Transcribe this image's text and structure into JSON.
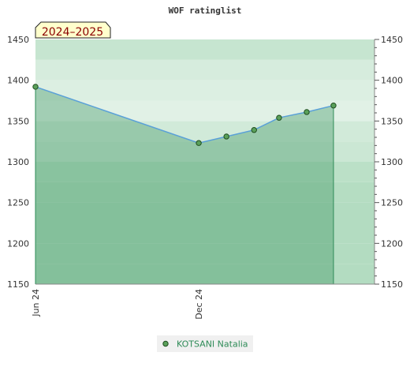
{
  "chart_data": {
    "type": "area",
    "title": "WOF ratinglist",
    "season_label": "2024–2025",
    "xlabel": "",
    "ylabel": "",
    "ylim": [
      1150,
      1450
    ],
    "yticks": [
      1150,
      1200,
      1250,
      1300,
      1350,
      1400,
      1450
    ],
    "xlim": [
      "2024-06-01",
      "2025-06-16"
    ],
    "xticks": [
      {
        "label": "Jun 24",
        "date": "2024-06-01"
      },
      {
        "label": "Dec 24",
        "date": "2024-12-01"
      }
    ],
    "series": [
      {
        "name": "KOTSANI Natalia",
        "points": [
          {
            "date": "2024-06-01",
            "value": 1392
          },
          {
            "date": "2024-12-01",
            "value": 1323
          },
          {
            "date": "2025-01-01",
            "value": 1331
          },
          {
            "date": "2025-02-01",
            "value": 1339
          },
          {
            "date": "2025-03-01",
            "value": 1354
          },
          {
            "date": "2025-04-01",
            "value": 1361
          },
          {
            "date": "2025-05-01",
            "value": 1369
          }
        ]
      }
    ],
    "grid": true,
    "legend_position": "bottom-center",
    "colors": {
      "line": "#5aa0d8",
      "area_fill": "#2e8b57",
      "marker_fill": "#5aa05a",
      "marker_stroke": "#1e4d1e",
      "drop_line": "#2e8b57",
      "band_dark": "#b3dcc1",
      "band_light": "#f0f8f2",
      "legend_text": "#2e8b57",
      "season_text": "#8b0000",
      "season_bg": "#ffffcc"
    }
  }
}
